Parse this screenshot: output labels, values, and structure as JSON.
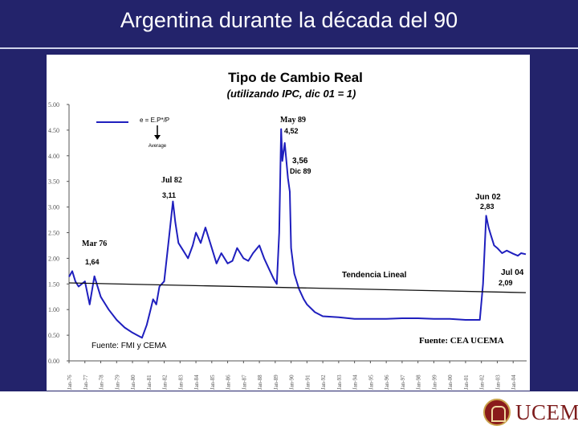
{
  "slide": {
    "title": "Argentina durante la década del 90",
    "logo_text": "UCEMA"
  },
  "colors": {
    "background": "#23236b",
    "series": "#1f1fbe",
    "trend": "#111111",
    "logo": "#7d1c1c"
  },
  "chart_data": {
    "type": "line",
    "title": "Tipo de Cambio Real",
    "subtitle": "(utilizando IPC, dic 01 = 1)",
    "ylim": [
      0,
      5
    ],
    "yticks": [
      "0.00",
      "0.50",
      "1.00",
      "1.50",
      "2.00",
      "2.50",
      "3.00",
      "3.50",
      "4.00",
      "4.50",
      "5.00"
    ],
    "xticks": [
      "Jan-76",
      "Jan-77",
      "Jan-78",
      "Jan-79",
      "Jan-80",
      "Jan-81",
      "Jan-82",
      "Jan-83",
      "Jan-84",
      "Jan-85",
      "Jan-86",
      "Jan-87",
      "Jan-88",
      "Jan-89",
      "Jan-90",
      "Jan-91",
      "Jan-92",
      "Jan-93",
      "Jan-94",
      "Jan-95",
      "Jan-96",
      "Jan-97",
      "Jan-98",
      "Jan-99",
      "Jan-00",
      "Jan-01",
      "Jan-02",
      "Jan-03",
      "Jan-04"
    ],
    "legend": {
      "formula": "e = E.P*/P",
      "arrow_label": "Average"
    },
    "series": [
      {
        "name": "Tipo de Cambio Real",
        "x": [
          1976.0,
          1976.2,
          1976.4,
          1976.6,
          1976.8,
          1977.0,
          1977.3,
          1977.6,
          1978.0,
          1978.5,
          1979.0,
          1979.5,
          1980.0,
          1980.3,
          1980.6,
          1980.9,
          1981.1,
          1981.3,
          1981.5,
          1981.7,
          1982.0,
          1982.3,
          1982.55,
          1982.7,
          1982.9,
          1983.2,
          1983.5,
          1983.8,
          1984.0,
          1984.3,
          1984.6,
          1985.0,
          1985.3,
          1985.6,
          1986.0,
          1986.3,
          1986.6,
          1987.0,
          1987.3,
          1987.6,
          1988.0,
          1988.3,
          1988.6,
          1988.9,
          1989.1,
          1989.25,
          1989.37,
          1989.45,
          1989.6,
          1989.8,
          1989.92,
          1990.0,
          1990.2,
          1990.5,
          1990.8,
          1991.0,
          1991.5,
          1992.0,
          1993.0,
          1994.0,
          1995.0,
          1996.0,
          1997.0,
          1998.0,
          1999.0,
          2000.0,
          2001.0,
          2001.9,
          2002.1,
          2002.3,
          2002.45,
          2002.6,
          2002.8,
          2003.0,
          2003.3,
          2003.6,
          2004.0,
          2004.3,
          2004.5,
          2004.8
        ],
        "values": [
          1.64,
          1.75,
          1.55,
          1.45,
          1.5,
          1.55,
          1.1,
          1.65,
          1.25,
          1.0,
          0.8,
          0.65,
          0.55,
          0.5,
          0.45,
          0.7,
          0.95,
          1.2,
          1.1,
          1.45,
          1.55,
          2.4,
          3.11,
          2.7,
          2.3,
          2.15,
          2.0,
          2.25,
          2.5,
          2.3,
          2.6,
          2.2,
          1.9,
          2.1,
          1.9,
          1.95,
          2.2,
          2.0,
          1.95,
          2.1,
          2.25,
          2.0,
          1.8,
          1.6,
          1.5,
          2.5,
          4.52,
          3.9,
          4.25,
          3.56,
          3.3,
          2.2,
          1.7,
          1.4,
          1.2,
          1.1,
          0.95,
          0.87,
          0.85,
          0.82,
          0.82,
          0.82,
          0.83,
          0.83,
          0.82,
          0.82,
          0.8,
          0.8,
          1.5,
          2.83,
          2.6,
          2.45,
          2.25,
          2.2,
          2.1,
          2.15,
          2.09,
          2.05,
          2.1,
          2.08
        ]
      },
      {
        "name": "Tendencia Lineal",
        "x": [
          1976.0,
          2004.8
        ],
        "values": [
          1.52,
          1.33
        ]
      }
    ],
    "annotations": [
      {
        "label": "Mar 76",
        "value": "1,64",
        "x": 1976.2,
        "y": 1.64
      },
      {
        "label": "Jul 82",
        "value": "3,11",
        "x": 1982.55,
        "y": 3.11
      },
      {
        "label": "May 89",
        "value": "4,52",
        "x": 1989.37,
        "y": 4.52
      },
      {
        "label": "3,56",
        "value": "Dic 89",
        "x": 1989.92,
        "y": 3.56
      },
      {
        "label": "Jun 02",
        "value": "2,83",
        "x": 2002.45,
        "y": 2.83
      },
      {
        "label": "Jul 04",
        "value": "2,09",
        "x": 2004.5,
        "y": 2.09
      },
      {
        "label": "Tendencia Lineal",
        "value": "",
        "x": 1993.0,
        "y": 1.44
      }
    ],
    "sources": [
      "Fuente: FMI y CEMA",
      "Fuente: CEA UCEMA"
    ]
  }
}
